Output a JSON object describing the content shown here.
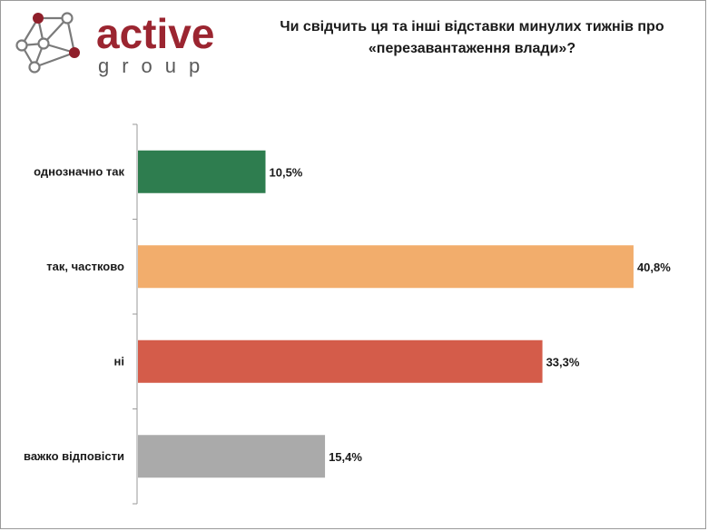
{
  "logo": {
    "word": "active",
    "sub": "group",
    "colors": {
      "dark": "#9b2530",
      "grey": "#6f6f6f"
    }
  },
  "title_lines": [
    "Чи свідчить ця та інші відставки минулих тижнів про",
    "«перезавантаження влади»?"
  ],
  "chart_data": {
    "type": "bar",
    "orientation": "horizontal",
    "title": "Чи свідчить ця та інші відставки минулих тижнів про «перезавантаження влади»?",
    "categories": [
      "однозначно так",
      "так, частково",
      "ні",
      "важко відповісти"
    ],
    "values": [
      10.5,
      40.8,
      33.3,
      15.4
    ],
    "value_labels": [
      "10,5%",
      "40,8%",
      "33,3%",
      "15,4%"
    ],
    "colors": [
      "#2e7d4f",
      "#f2ad6c",
      "#d45c4a",
      "#aaaaaa"
    ],
    "xlim": [
      0,
      42
    ],
    "grid": false,
    "legend": "none"
  }
}
